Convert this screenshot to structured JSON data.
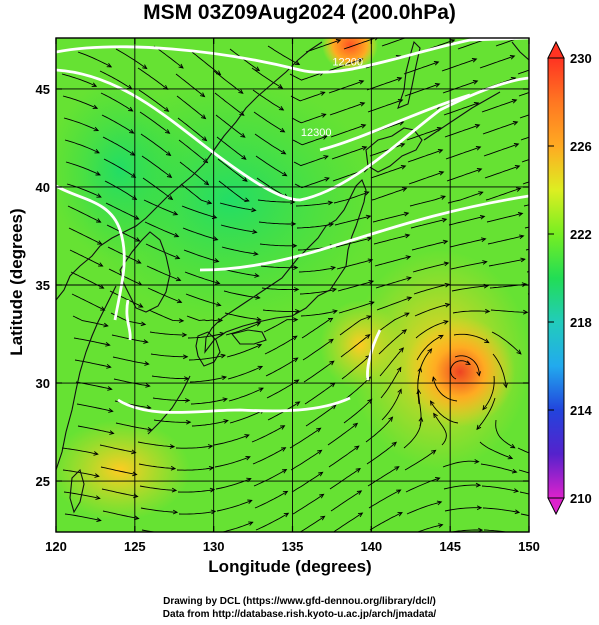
{
  "title": "MSM 03Z09Aug2024 (200.0hPa)",
  "axes": {
    "xlabel": "Longitude (degrees)",
    "ylabel": "Latitude  (degrees)",
    "xlim": [
      120,
      150
    ],
    "ylim": [
      22.4,
      47.6
    ],
    "xticks": [
      {
        "value": 120,
        "label": "120"
      },
      {
        "value": 125,
        "label": "125"
      },
      {
        "value": 130,
        "label": "130"
      },
      {
        "value": 135,
        "label": "135"
      },
      {
        "value": 140,
        "label": "140"
      },
      {
        "value": 145,
        "label": "145"
      },
      {
        "value": 150,
        "label": "150"
      }
    ],
    "yticks": [
      {
        "value": 25,
        "label": "25"
      },
      {
        "value": 30,
        "label": "30"
      },
      {
        "value": 35,
        "label": "35"
      },
      {
        "value": 40,
        "label": "40"
      },
      {
        "value": 45,
        "label": "45"
      }
    ]
  },
  "colorbar": {
    "min": 210,
    "max": 230,
    "ticks": [
      {
        "value": 230,
        "label": "230"
      },
      {
        "value": 226,
        "label": "226"
      },
      {
        "value": 222,
        "label": "222"
      },
      {
        "value": 218,
        "label": "218"
      },
      {
        "value": 214,
        "label": "214"
      },
      {
        "value": 210,
        "label": "210"
      }
    ]
  },
  "contour_labels": [
    {
      "text": "12200",
      "lon": 138.5,
      "lat": 46.2
    },
    {
      "text": "12300",
      "lon": 136.5,
      "lat": 42.6
    }
  ],
  "colors": {
    "low": "#dd22cc",
    "mid": "#22dd55",
    "high": "#ff3322",
    "contour": "#ffffff",
    "streamline": "#000000"
  },
  "credits": {
    "line1": "Drawing by DCL (https://www.gfd-dennou.org/library/dcl/)",
    "line2": "Data from http://database.rish.kyoto-u.ac.jp/arch/jmadata/"
  }
}
